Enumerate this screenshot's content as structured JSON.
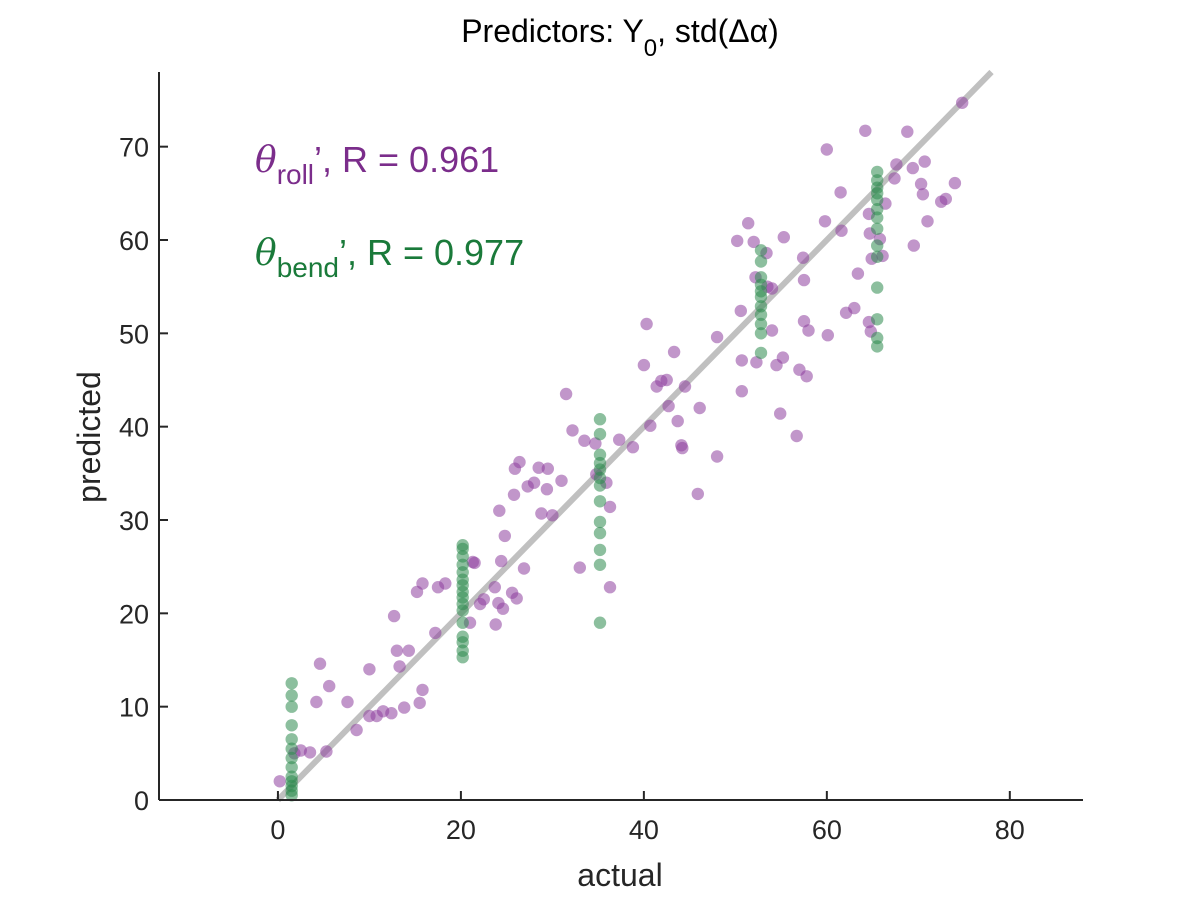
{
  "chart_data": {
    "type": "scatter",
    "title_prefix": "Predictors: Y",
    "title_sub": "0",
    "title_suffix": ", std(Δα)",
    "xlabel": "actual",
    "ylabel": "predicted",
    "xlim": [
      -13,
      88
    ],
    "ylim": [
      0,
      78
    ],
    "xticks": [
      "0",
      "20",
      "40",
      "60",
      "80"
    ],
    "yticks": [
      "0",
      "10",
      "20",
      "30",
      "40",
      "50",
      "60",
      "70"
    ],
    "xtick_values": [
      0,
      20,
      40,
      60,
      80
    ],
    "ytick_values": [
      0,
      10,
      20,
      30,
      40,
      50,
      60,
      70
    ],
    "reference_line": {
      "from": [
        0,
        0
      ],
      "to": [
        78,
        78
      ],
      "color": "#c0c0c0"
    },
    "legend": [
      {
        "symbol": "θ",
        "sub": "roll",
        "suffix": "’, R = 0.961",
        "color": "#7b2d8b"
      },
      {
        "symbol": "θ",
        "sub": "bend",
        "suffix": "’, R = 0.977",
        "color": "#1a7a3a"
      }
    ],
    "series": [
      {
        "name": "θroll",
        "color": "#8e3f9e",
        "points": [
          [
            0.2,
            2
          ],
          [
            1.8,
            5
          ],
          [
            2.5,
            5.3
          ],
          [
            3.5,
            5.1
          ],
          [
            4.6,
            14.6
          ],
          [
            5.3,
            5.2
          ],
          [
            5.6,
            12.2
          ],
          [
            4.2,
            10.5
          ],
          [
            7.6,
            10.5
          ],
          [
            8.6,
            7.5
          ],
          [
            10,
            14
          ],
          [
            10,
            9
          ],
          [
            10.8,
            9
          ],
          [
            11.5,
            9.5
          ],
          [
            12.4,
            9.3
          ],
          [
            12.7,
            19.7
          ],
          [
            13,
            16
          ],
          [
            13.3,
            14.3
          ],
          [
            13.8,
            9.9
          ],
          [
            14.3,
            16
          ],
          [
            15.2,
            22.3
          ],
          [
            15.5,
            10.4
          ],
          [
            15.8,
            11.8
          ],
          [
            15.8,
            23.2
          ],
          [
            17.2,
            17.9
          ],
          [
            17.5,
            22.8
          ],
          [
            18.3,
            23.2
          ],
          [
            21,
            19
          ],
          [
            21.3,
            25.5
          ],
          [
            21.5,
            25.4
          ],
          [
            22.1,
            21
          ],
          [
            22.5,
            21.5
          ],
          [
            23.7,
            22.8
          ],
          [
            23.8,
            18.8
          ],
          [
            24.1,
            21.1
          ],
          [
            24.2,
            31
          ],
          [
            24.4,
            25.6
          ],
          [
            24.6,
            20.5
          ],
          [
            24.8,
            28.3
          ],
          [
            25.6,
            22.2
          ],
          [
            25.8,
            32.7
          ],
          [
            25.9,
            35.5
          ],
          [
            26.1,
            21.6
          ],
          [
            26.4,
            36.2
          ],
          [
            26.9,
            24.8
          ],
          [
            27.3,
            33.6
          ],
          [
            28,
            34
          ],
          [
            28.5,
            35.6
          ],
          [
            28.8,
            30.7
          ],
          [
            29.4,
            33.3
          ],
          [
            29.5,
            35.5
          ],
          [
            30,
            30.5
          ],
          [
            31,
            34.2
          ],
          [
            31.5,
            43.5
          ],
          [
            32.2,
            39.6
          ],
          [
            33,
            24.9
          ],
          [
            33.5,
            38.5
          ],
          [
            34.8,
            34.9
          ],
          [
            34.7,
            38.2
          ],
          [
            35.9,
            34
          ],
          [
            36.3,
            22.8
          ],
          [
            36.3,
            31.4
          ],
          [
            37.3,
            38.6
          ],
          [
            38.8,
            37.8
          ],
          [
            40,
            46.6
          ],
          [
            40.3,
            51
          ],
          [
            40.7,
            40.1
          ],
          [
            41.4,
            44.3
          ],
          [
            41.9,
            44.9
          ],
          [
            42.5,
            45
          ],
          [
            42.7,
            42.2
          ],
          [
            43.3,
            48
          ],
          [
            43.7,
            40.6
          ],
          [
            44.1,
            38
          ],
          [
            44.2,
            37.7
          ],
          [
            44.5,
            44.3
          ],
          [
            45.9,
            32.8
          ],
          [
            46.1,
            42
          ],
          [
            48,
            36.8
          ],
          [
            48,
            49.6
          ],
          [
            50.2,
            59.9
          ],
          [
            50.6,
            52.4
          ],
          [
            50.7,
            43.8
          ],
          [
            50.7,
            47.1
          ],
          [
            51.4,
            61.8
          ],
          [
            52,
            59.8
          ],
          [
            52.2,
            56
          ],
          [
            52.3,
            46.9
          ],
          [
            53.4,
            58.6
          ],
          [
            53.5,
            55
          ],
          [
            54,
            50.3
          ],
          [
            54,
            54.8
          ],
          [
            54.5,
            46.6
          ],
          [
            54.9,
            41.4
          ],
          [
            55.2,
            47.4
          ],
          [
            55.3,
            60.3
          ],
          [
            56.7,
            39
          ],
          [
            57,
            46.1
          ],
          [
            57.4,
            58.1
          ],
          [
            57.5,
            51.3
          ],
          [
            57.5,
            55.7
          ],
          [
            57.8,
            45.4
          ],
          [
            58,
            50.3
          ],
          [
            59.8,
            62
          ],
          [
            60,
            69.7
          ],
          [
            60.1,
            49.8
          ],
          [
            61.5,
            65.1
          ],
          [
            61.6,
            61
          ],
          [
            62.1,
            52.2
          ],
          [
            63,
            52.7
          ],
          [
            63.4,
            56.4
          ],
          [
            64.2,
            71.7
          ],
          [
            64.6,
            62.8
          ],
          [
            64.6,
            51.2
          ],
          [
            64.7,
            60.7
          ],
          [
            64.8,
            50.2
          ],
          [
            64.9,
            58
          ],
          [
            65.8,
            60.1
          ],
          [
            66.1,
            58.3
          ],
          [
            66.4,
            63.9
          ],
          [
            67.4,
            66.6
          ],
          [
            67.6,
            68.1
          ],
          [
            68.8,
            71.6
          ],
          [
            69.4,
            67.7
          ],
          [
            69.5,
            59.4
          ],
          [
            70.3,
            66
          ],
          [
            70.5,
            64.9
          ],
          [
            70.7,
            68.4
          ],
          [
            71,
            62
          ],
          [
            72.5,
            64.1
          ],
          [
            73,
            64.4
          ],
          [
            74,
            66.1
          ],
          [
            74.8,
            74.7
          ]
        ]
      },
      {
        "name": "θbend",
        "color": "#2e8b4e",
        "points": [
          [
            1.5,
            0.5
          ],
          [
            1.5,
            1
          ],
          [
            1.5,
            1.5
          ],
          [
            1.5,
            2
          ],
          [
            1.5,
            2.5
          ],
          [
            1.5,
            3.5
          ],
          [
            1.5,
            4.5
          ],
          [
            1.5,
            5.5
          ],
          [
            1.5,
            6.5
          ],
          [
            1.5,
            8
          ],
          [
            1.5,
            10
          ],
          [
            1.5,
            11.2
          ],
          [
            1.5,
            12.5
          ],
          [
            20.2,
            15.3
          ],
          [
            20.2,
            16
          ],
          [
            20.2,
            16.9
          ],
          [
            20.2,
            17.5
          ],
          [
            20.2,
            19
          ],
          [
            20.2,
            20.3
          ],
          [
            20.2,
            21
          ],
          [
            20.2,
            21.7
          ],
          [
            20.2,
            22.3
          ],
          [
            20.2,
            23
          ],
          [
            20.2,
            23.6
          ],
          [
            20.2,
            24.4
          ],
          [
            20.2,
            25.2
          ],
          [
            20.2,
            26.1
          ],
          [
            20.2,
            26.9
          ],
          [
            20.2,
            27.3
          ],
          [
            35.2,
            19
          ],
          [
            35.2,
            25.2
          ],
          [
            35.2,
            26.8
          ],
          [
            35.2,
            28.6
          ],
          [
            35.2,
            29.8
          ],
          [
            35.2,
            32
          ],
          [
            35.2,
            33.7
          ],
          [
            35.2,
            34.5
          ],
          [
            35.2,
            35.4
          ],
          [
            35.2,
            36.1
          ],
          [
            35.2,
            37
          ],
          [
            35.2,
            39.2
          ],
          [
            35.2,
            40.8
          ],
          [
            52.8,
            47.9
          ],
          [
            52.8,
            50
          ],
          [
            52.8,
            51
          ],
          [
            52.8,
            52
          ],
          [
            52.8,
            52.9
          ],
          [
            52.8,
            53.9
          ],
          [
            52.8,
            54.5
          ],
          [
            52.8,
            55.2
          ],
          [
            52.8,
            56
          ],
          [
            52.8,
            57.7
          ],
          [
            52.8,
            58.9
          ],
          [
            65.5,
            48.6
          ],
          [
            65.5,
            49.5
          ],
          [
            65.5,
            51.5
          ],
          [
            65.5,
            54.9
          ],
          [
            65.5,
            58.2
          ],
          [
            65.5,
            59.4
          ],
          [
            65.5,
            61.2
          ],
          [
            65.5,
            62.4
          ],
          [
            65.5,
            63.3
          ],
          [
            65.5,
            64.3
          ],
          [
            65.5,
            65
          ],
          [
            65.5,
            65.6
          ],
          [
            65.5,
            66.4
          ],
          [
            65.5,
            67.3
          ]
        ]
      }
    ]
  }
}
